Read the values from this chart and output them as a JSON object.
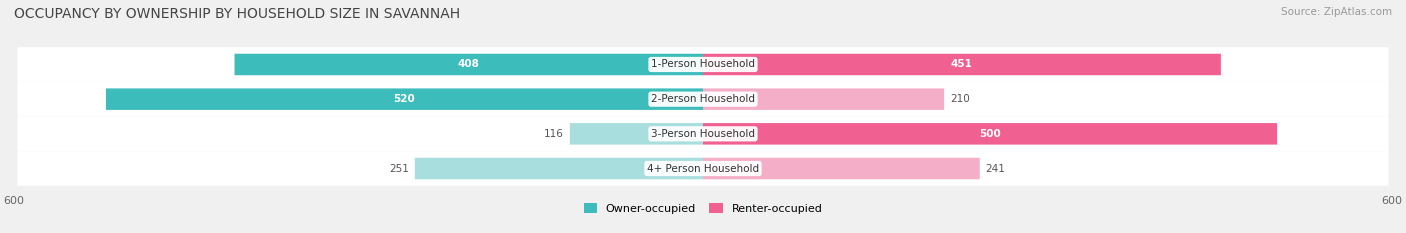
{
  "title": "OCCUPANCY BY OWNERSHIP BY HOUSEHOLD SIZE IN SAVANNAH",
  "source": "Source: ZipAtlas.com",
  "categories": [
    "1-Person Household",
    "2-Person Household",
    "3-Person Household",
    "4+ Person Household"
  ],
  "owner_values": [
    408,
    520,
    116,
    251
  ],
  "renter_values": [
    451,
    210,
    500,
    241
  ],
  "owner_color_dark": "#3dbcbc",
  "owner_color_light": "#a8dede",
  "renter_color_dark": "#f06090",
  "renter_color_light": "#f4aec8",
  "axis_max": 600,
  "background_color": "#f0f0f0",
  "row_bg_color": "#e8e8e8",
  "title_fontsize": 10,
  "source_fontsize": 7.5,
  "label_fontsize": 7.5,
  "value_fontsize": 7.5,
  "tick_fontsize": 8,
  "legend_fontsize": 8
}
